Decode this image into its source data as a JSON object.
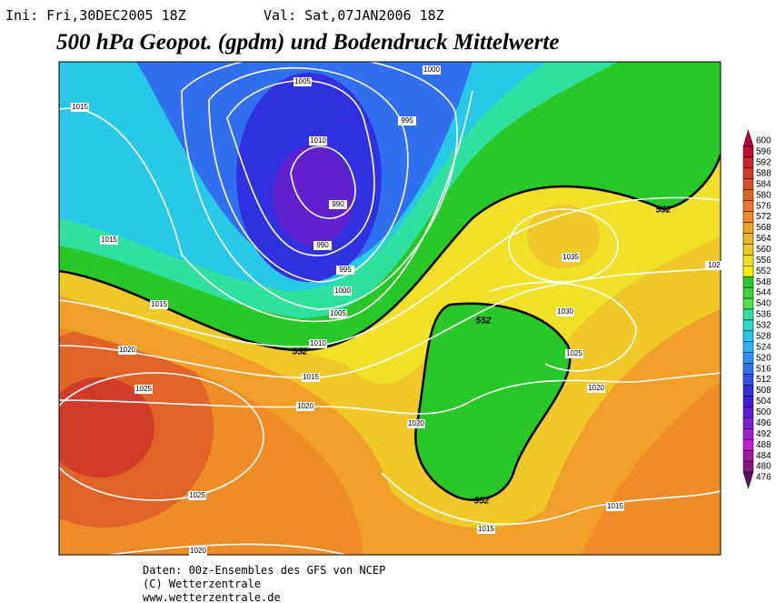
{
  "header": {
    "init": "Ini: Fri,30DEC2005 18Z",
    "valid": "Val: Sat,07JAN2006 18Z",
    "title": "500 hPa Geopot. (gpdm) und Bodendruck Mittelwerte"
  },
  "legend": {
    "levels": [
      600,
      596,
      592,
      588,
      584,
      580,
      576,
      572,
      568,
      564,
      560,
      556,
      552,
      548,
      544,
      540,
      536,
      532,
      528,
      524,
      520,
      516,
      512,
      508,
      504,
      500,
      496,
      492,
      488,
      484,
      480,
      476
    ],
    "colors": [
      "#b4003c",
      "#c01030",
      "#c82828",
      "#d03c28",
      "#d85028",
      "#e06428",
      "#e87828",
      "#f08c28",
      "#f0a028",
      "#f0b428",
      "#f0c828",
      "#f0e028",
      "#f0f000",
      "#28c828",
      "#40d040",
      "#50e050",
      "#30e0a0",
      "#28d8c8",
      "#28c8e8",
      "#30b0f0",
      "#3090f0",
      "#3070f0",
      "#3050e8",
      "#3030e0",
      "#4020d0",
      "#6020d0",
      "#8020d0",
      "#a020d0",
      "#c020d0",
      "#a018a0",
      "#801880",
      "#601060"
    ]
  },
  "map": {
    "pressure_labels": [
      "1005",
      "1000",
      "1015",
      "995",
      "1010",
      "990",
      "1015",
      "990",
      "995",
      "1000",
      "1005",
      "1010",
      "1015",
      "1020",
      "1025",
      "1015",
      "1020",
      "1035",
      "1030",
      "1025",
      "1020",
      "1020",
      "1025",
      "1020",
      "1015",
      "1015",
      "102"
    ],
    "geopotential_labels": [
      "552",
      "552",
      "552",
      "552"
    ]
  },
  "footer": {
    "source": "Daten: 00z-Ensembles des GFS von NCEP",
    "copyright": "(C) Wetterzentrale",
    "url": "www.wetterzentrale.de"
  }
}
